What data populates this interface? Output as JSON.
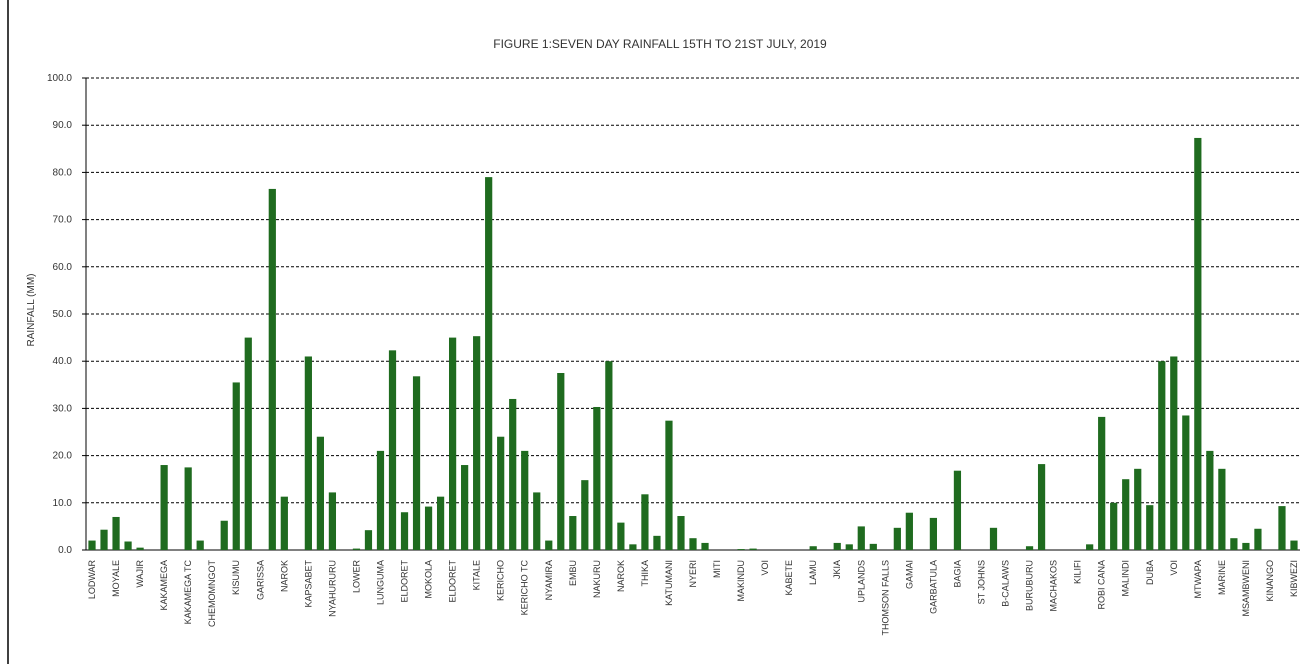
{
  "chart_data": {
    "type": "bar",
    "title": "FIGURE 1:SEVEN DAY RAINFALL 15TH TO 21ST JULY, 2019",
    "y_label": "RAINFALL (MM)",
    "categories": [
      "LODWAR",
      null,
      "MOYALE",
      null,
      "WAJIR",
      null,
      "KAKAMEGA",
      null,
      "KAKAMEGA TC",
      null,
      "CHEMOMNGOT",
      null,
      "KISUMU",
      null,
      "GARISSA",
      null,
      "NAROK",
      null,
      "KAPSABET",
      null,
      "NYAHURURU",
      null,
      "LOWER",
      null,
      "LUNGUMA",
      null,
      "ELDORET",
      null,
      "MOKOLA",
      null,
      "ELDORET",
      null,
      "KITALE",
      null,
      "KERICHO",
      null,
      "KERICHO TC",
      null,
      "NYAMIRA",
      null,
      "EMBU",
      null,
      "NAKURU",
      null,
      "NAROK",
      null,
      "THIKA",
      null,
      "KATUMANI",
      null,
      "NYERI",
      null,
      "MITI",
      null,
      "MAKINDU",
      null,
      "VOI",
      null,
      "KABETE",
      null,
      "LAMU",
      null,
      "JKIA",
      null,
      "UPLANDS",
      null,
      "THOMSON FALLS",
      null,
      "GAMAI",
      null,
      "GARBATULA",
      null,
      "BAGIA",
      null,
      "ST JOHNS",
      null,
      "B-CALAWS",
      null,
      "BURUBURU",
      null,
      "MACHAKOS",
      null,
      "KILIFI",
      null,
      "ROBI CANA",
      null,
      "MALINDI",
      null,
      "DUBA",
      null,
      "VOI",
      null,
      "MTWAPA",
      null,
      "MARINE",
      null,
      "MSAMBWENI",
      null,
      "KINANGO",
      null,
      "KIBWEZI"
    ],
    "values": [
      2,
      4.3,
      7,
      1.8,
      0.5,
      0,
      18,
      0,
      17.5,
      2,
      0,
      6.2,
      35.5,
      45,
      0,
      76.5,
      11.3,
      0,
      41,
      24,
      12.2,
      0,
      0.3,
      4.2,
      21,
      42.3,
      8,
      36.8,
      9.2,
      11.3,
      45,
      18,
      45.3,
      79,
      24,
      32,
      21,
      12.2,
      2,
      37.5,
      7.2,
      14.8,
      30.3,
      40,
      5.8,
      1.2,
      11.8,
      3,
      27.4,
      7.2,
      2.5,
      1.5,
      0,
      0,
      0.2,
      0.3,
      0,
      0,
      0,
      0,
      0.8,
      0,
      1.5,
      1.2,
      5,
      1.3,
      0,
      4.7,
      7.9,
      0,
      6.8,
      0,
      16.8,
      0,
      0,
      4.7,
      0,
      0,
      0.8,
      18.2,
      0,
      0,
      0,
      1.2,
      28.2,
      10,
      15,
      17.2,
      9.5,
      40,
      41,
      28.5,
      87.3,
      21,
      17.2,
      2.5,
      1.5,
      4.5,
      0,
      9.3,
      2
    ],
    "color": "#1f6b1f",
    "ylim": [
      0,
      100
    ],
    "yticks": [
      {
        "value": 0,
        "label": "0.0"
      },
      {
        "value": 10,
        "label": "10.0"
      },
      {
        "value": 20,
        "label": "20.0"
      },
      {
        "value": 30,
        "label": "30.0"
      },
      {
        "value": 40,
        "label": "40.0"
      },
      {
        "value": 50,
        "label": "50.0"
      },
      {
        "value": 60,
        "label": "60.0"
      },
      {
        "value": 70,
        "label": "70.0"
      },
      {
        "value": 80,
        "label": "80.0"
      },
      {
        "value": 90,
        "label": "90.0"
      },
      {
        "value": 100,
        "label": "100.0"
      }
    ],
    "grid": true
  }
}
